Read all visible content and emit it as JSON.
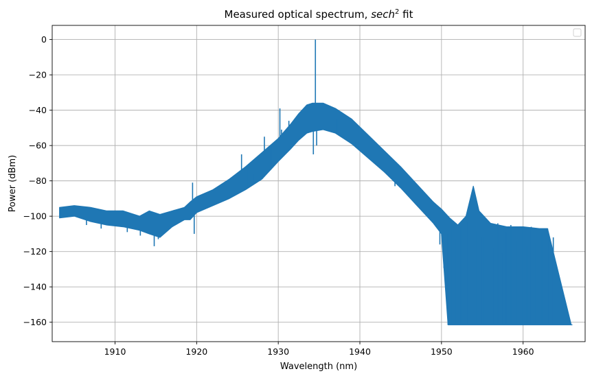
{
  "chart_data": {
    "type": "line",
    "title": "Measured optical spectrum, ",
    "title_math": "sech",
    "title_sup": "2",
    "title_suffix": " fit",
    "xlabel": "Wavelength (nm)",
    "ylabel": "Power (dBm)",
    "xlim": [
      1902.3,
      1967.6
    ],
    "ylim": [
      -171,
      8
    ],
    "xticks": [
      1910,
      1920,
      1930,
      1940,
      1950,
      1960
    ],
    "yticks": [
      0,
      -20,
      -40,
      -60,
      -80,
      -100,
      -120,
      -140,
      -160
    ],
    "grid": true,
    "legend": "top-right, empty",
    "series_color": "#1f77b4",
    "series": [
      {
        "upper": [
          [
            1903.2,
            -95
          ],
          [
            1905,
            -94
          ],
          [
            1907,
            -95
          ],
          [
            1909,
            -97
          ],
          [
            1911,
            -97
          ],
          [
            1913,
            -100
          ],
          [
            1914.2,
            -97
          ],
          [
            1915.5,
            -99
          ],
          [
            1917,
            -97
          ],
          [
            1918.5,
            -95
          ],
          [
            1919.2,
            -92
          ],
          [
            1920,
            -89
          ],
          [
            1922,
            -85
          ],
          [
            1924,
            -79
          ],
          [
            1926,
            -72
          ],
          [
            1928,
            -64
          ],
          [
            1930,
            -56
          ],
          [
            1931.5,
            -48
          ],
          [
            1932.5,
            -42
          ],
          [
            1933.5,
            -37
          ],
          [
            1934.2,
            -36
          ],
          [
            1935.5,
            -36
          ],
          [
            1937,
            -39
          ],
          [
            1939,
            -45
          ],
          [
            1941,
            -54
          ],
          [
            1943,
            -63
          ],
          [
            1945,
            -72
          ],
          [
            1947,
            -82
          ],
          [
            1949,
            -92
          ],
          [
            1950,
            -96
          ],
          [
            1951,
            -101
          ],
          [
            1952,
            -105
          ],
          [
            1953,
            -100
          ],
          [
            1953.9,
            -83
          ],
          [
            1954.6,
            -97
          ],
          [
            1956,
            -104
          ],
          [
            1958,
            -106
          ],
          [
            1960,
            -106
          ],
          [
            1962,
            -107
          ],
          [
            1963,
            -107
          ],
          [
            1965.9,
            -161.5
          ]
        ],
        "lower": [
          [
            1903.2,
            -101
          ],
          [
            1905,
            -100
          ],
          [
            1907,
            -103
          ],
          [
            1909,
            -105
          ],
          [
            1911,
            -106
          ],
          [
            1913,
            -108
          ],
          [
            1914.2,
            -110
          ],
          [
            1915.5,
            -112
          ],
          [
            1917,
            -106
          ],
          [
            1918.5,
            -102
          ],
          [
            1919.2,
            -102
          ],
          [
            1920,
            -98
          ],
          [
            1922,
            -94
          ],
          [
            1924,
            -90
          ],
          [
            1926,
            -85
          ],
          [
            1928,
            -79
          ],
          [
            1930,
            -69
          ],
          [
            1931.5,
            -62
          ],
          [
            1932.5,
            -57
          ],
          [
            1933.5,
            -53
          ],
          [
            1934.2,
            -52
          ],
          [
            1935.5,
            -51
          ],
          [
            1937,
            -53
          ],
          [
            1939,
            -59
          ],
          [
            1941,
            -67
          ],
          [
            1943,
            -75
          ],
          [
            1945,
            -84
          ],
          [
            1947,
            -94
          ],
          [
            1949,
            -104
          ],
          [
            1950,
            -110
          ],
          [
            1950.8,
            -161.5
          ],
          [
            1966,
            -161.5
          ]
        ],
        "spikes": [
          [
            1903.3,
            -101
          ],
          [
            1906.5,
            -105
          ],
          [
            1908.3,
            -107
          ],
          [
            1911.5,
            -109
          ],
          [
            1913.1,
            -111
          ],
          [
            1914.8,
            -117
          ],
          [
            1915.3,
            -113
          ],
          [
            1916.2,
            -108
          ],
          [
            1919.5,
            -81
          ],
          [
            1919.7,
            -110
          ],
          [
            1925.5,
            -65
          ],
          [
            1926.3,
            -72
          ],
          [
            1927.1,
            -76
          ],
          [
            1928.3,
            -55
          ],
          [
            1929.1,
            -60
          ],
          [
            1930.2,
            -39
          ],
          [
            1930.4,
            -51
          ],
          [
            1931.3,
            -46
          ],
          [
            1934.3,
            -65
          ],
          [
            1934.55,
            0
          ],
          [
            1934.7,
            -60
          ],
          [
            1937.2,
            -45
          ],
          [
            1939.5,
            -58
          ],
          [
            1942.5,
            -73
          ],
          [
            1944.3,
            -83
          ],
          [
            1947.2,
            -95
          ],
          [
            1949.8,
            -116
          ],
          [
            1950.3,
            -126
          ]
        ],
        "cliff_spikes": [
          [
            1950.8,
            -110
          ],
          [
            1951.2,
            -102
          ],
          [
            1951.8,
            -113
          ],
          [
            1952.4,
            -106
          ],
          [
            1953.1,
            -103
          ],
          [
            1954.3,
            -108
          ],
          [
            1955.0,
            -112
          ],
          [
            1955.6,
            -106
          ],
          [
            1956.3,
            -118
          ],
          [
            1956.9,
            -104
          ],
          [
            1957.4,
            -121
          ],
          [
            1957.9,
            -109
          ],
          [
            1958.5,
            -105
          ],
          [
            1959.2,
            -114
          ],
          [
            1959.8,
            -107
          ],
          [
            1960.5,
            -117
          ],
          [
            1961.0,
            -106
          ],
          [
            1961.6,
            -115
          ],
          [
            1962.3,
            -110
          ],
          [
            1963.0,
            -107
          ],
          [
            1963.7,
            -112
          ]
        ]
      }
    ]
  }
}
